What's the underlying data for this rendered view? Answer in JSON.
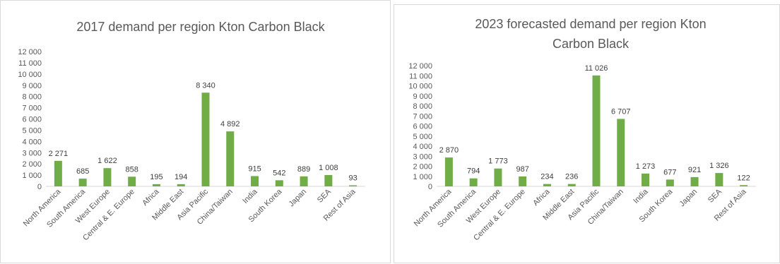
{
  "chart_data": [
    {
      "type": "bar",
      "title_lines": [
        "2017 demand per region Kton Carbon Black"
      ],
      "categories": [
        "North America",
        "South America",
        "West Europe",
        "Central & E. Europe",
        "Africa",
        "Middle East",
        "Asia Pacific",
        "China/Taiwan",
        "India",
        "South Korea",
        "Japan",
        "SEA",
        "Rest of Asia"
      ],
      "values": [
        2271,
        685,
        1622,
        858,
        195,
        194,
        8340,
        4892,
        915,
        542,
        889,
        1008,
        93
      ],
      "data_labels": [
        "2 271",
        "685",
        "1 622",
        "858",
        "195",
        "194",
        "8 340",
        "4 892",
        "915",
        "542",
        "889",
        "1 008",
        "93"
      ],
      "ylim": [
        0,
        12000
      ],
      "yticks": [
        "0",
        "1 000",
        "2 000",
        "3 000",
        "4 000",
        "5 000",
        "6 000",
        "7 000",
        "8 000",
        "9 000",
        "10 000",
        "11 000",
        "12 000"
      ],
      "bar_color": "#70ad47",
      "grid": false,
      "legend": "none"
    },
    {
      "type": "bar",
      "title_lines": [
        "2023 forecasted demand  per region Kton",
        "Carbon Black"
      ],
      "categories": [
        "North America",
        "South America",
        "West Europe",
        "Central & E. Europe",
        "Africa",
        "Middle East",
        "Asia Pacific",
        "China/Taiwan",
        "India",
        "South Korea",
        "Japan",
        "SEA",
        "Rest of Asia"
      ],
      "values": [
        2870,
        794,
        1773,
        987,
        234,
        236,
        11026,
        6707,
        1273,
        677,
        921,
        1326,
        122
      ],
      "data_labels": [
        "2 870",
        "794",
        "1 773",
        "987",
        "234",
        "236",
        "11 026",
        "6 707",
        "1 273",
        "677",
        "921",
        "1 326",
        "122"
      ],
      "ylim": [
        0,
        12000
      ],
      "yticks": [
        "0",
        "1 000",
        "2 000",
        "3 000",
        "4 000",
        "5 000",
        "6 000",
        "7 000",
        "8 000",
        "9 000",
        "10 000",
        "11 000",
        "12 000"
      ],
      "bar_color": "#70ad47",
      "grid": false,
      "legend": "none"
    }
  ]
}
